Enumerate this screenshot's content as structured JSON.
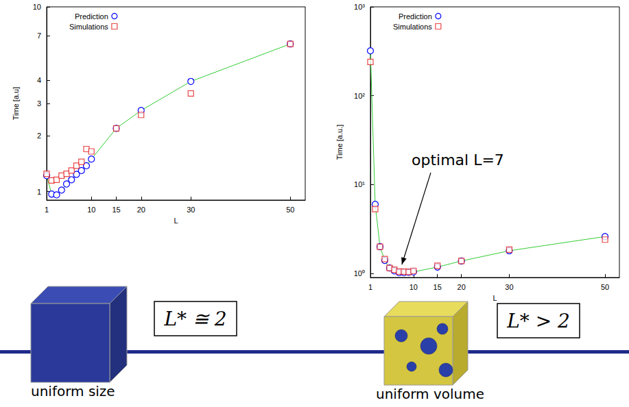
{
  "chart_data": [
    {
      "type": "line",
      "x_label": "L",
      "y_label": "Time [a.u]",
      "x": [
        1,
        2,
        3,
        4,
        5,
        6,
        7,
        8,
        9,
        10,
        15,
        20,
        30,
        50
      ],
      "series": [
        {
          "name": "Prediction",
          "color": "#0000ff",
          "marker": "circle",
          "line_style": "solid",
          "type": "line",
          "values": [
            1.22,
            0.97,
            0.96,
            1.02,
            1.1,
            1.16,
            1.24,
            1.3,
            1.38,
            1.5,
            2.2,
            2.75,
            3.95,
            6.3
          ]
        },
        {
          "name": "Simulations",
          "color": "#e41a1c",
          "marker": "square",
          "line_style": "none",
          "type": "scatter",
          "values": [
            1.25,
            1.15,
            1.16,
            1.22,
            1.25,
            1.3,
            1.38,
            1.45,
            1.7,
            1.65,
            2.2,
            2.6,
            3.4,
            6.3
          ]
        }
      ],
      "xlim": [
        1,
        53
      ],
      "xticks": [
        1,
        10,
        15,
        20,
        30,
        50
      ],
      "ylim": [
        0.9,
        10
      ],
      "yticks": [
        1,
        2,
        3,
        4,
        7,
        10
      ],
      "log": "y",
      "grid": false,
      "legend": "upper left",
      "note": "L* ≅ 2",
      "caption": "uniform size"
    },
    {
      "type": "line",
      "x_label": "L",
      "y_label": "Time [a.u.]",
      "x": [
        1,
        2,
        3,
        4,
        5,
        6,
        7,
        8,
        9,
        10,
        15,
        20,
        30,
        50
      ],
      "series": [
        {
          "name": "Prediction",
          "color": "#0000ff",
          "marker": "circle",
          "line_style": "solid",
          "type": "line",
          "values": [
            320,
            6,
            2.0,
            1.4,
            1.15,
            1.07,
            1.02,
            1.02,
            1.03,
            1.04,
            1.18,
            1.38,
            1.8,
            2.6
          ]
        },
        {
          "name": "Simulations",
          "color": "#e41a1c",
          "marker": "square",
          "line_style": "none",
          "type": "scatter",
          "values": [
            240,
            5.3,
            2.0,
            1.45,
            1.15,
            1.1,
            1.05,
            1.05,
            1.04,
            1.07,
            1.22,
            1.38,
            1.85,
            2.4
          ]
        }
      ],
      "xlim": [
        1,
        53
      ],
      "xticks": [
        1,
        10,
        15,
        20,
        30,
        50
      ],
      "ylim": [
        0.9,
        1000
      ],
      "yticks": [
        {
          "value": 1,
          "label": "10⁰"
        },
        {
          "value": 10,
          "label": "10¹"
        },
        {
          "value": 100,
          "label": "10²"
        },
        {
          "value": 1000,
          "label": "10³"
        }
      ],
      "log": "y",
      "grid": false,
      "legend": "upper left",
      "annotations": [
        {
          "text": "optimal L=7",
          "x": 7,
          "y": 1.02
        }
      ],
      "note": "L* > 2",
      "caption": "uniform volume"
    }
  ]
}
